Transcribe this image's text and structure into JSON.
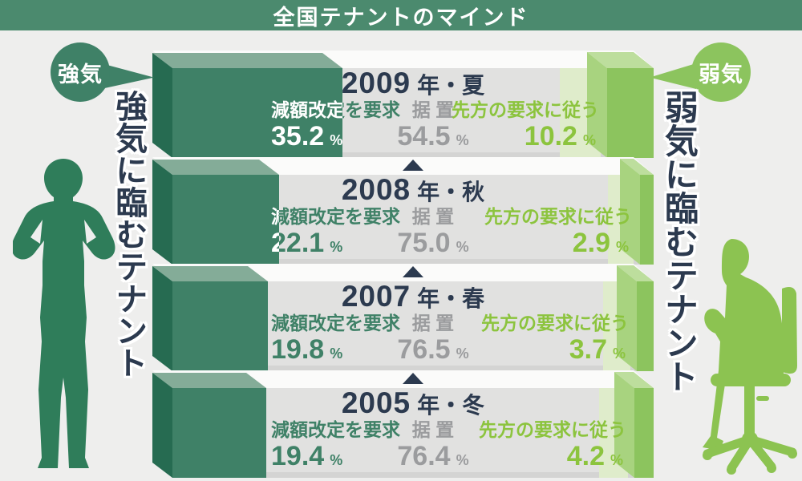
{
  "title": "全国テナントのマインド",
  "bullish_bubble": "強気",
  "bearish_bubble": "弱気",
  "left_caption": "強気に臨むテナント",
  "right_caption": "弱気に臨むテナント",
  "labels": {
    "demand": "減額改定を要求",
    "hold": "据 置",
    "follow": "先方の要求に従う",
    "percent": "%"
  },
  "bars": [
    {
      "year": "2009",
      "season": "年・夏",
      "demand": "35.2",
      "hold": "54.5",
      "follow": "10.2"
    },
    {
      "year": "2008",
      "season": "年・秋",
      "demand": "22.1",
      "hold": "75.0",
      "follow": "2.9"
    },
    {
      "year": "2007",
      "season": "年・春",
      "demand": "19.8",
      "hold": "76.5",
      "follow": "3.7"
    },
    {
      "year": "2005",
      "season": "年・冬",
      "demand": "19.4",
      "hold": "76.4",
      "follow": "4.2"
    }
  ],
  "chart_data": {
    "type": "bar",
    "orientation": "horizontal-stacked",
    "title": "全国テナントのマインド",
    "categories": [
      "2009年・夏",
      "2008年・秋",
      "2007年・春",
      "2005年・冬"
    ],
    "series": [
      {
        "name": "減額改定を要求",
        "values": [
          35.2,
          22.1,
          19.8,
          19.4
        ],
        "color": "#3f8167"
      },
      {
        "name": "据置",
        "values": [
          54.5,
          75.0,
          76.5,
          76.4
        ],
        "color": "#e1e1e0"
      },
      {
        "name": "先方の要求に従う",
        "values": [
          10.2,
          2.9,
          3.7,
          4.2
        ],
        "color": "#8cc45e"
      }
    ],
    "unit": "%",
    "annotations": [
      "強気",
      "弱気",
      "強気に臨むテナント",
      "弱気に臨むテナント"
    ],
    "legend_position": "none",
    "grid": false
  },
  "colors": {
    "background": "#eeeeed",
    "title_bg": "#4b8a6e",
    "bar_top": "#fbfbfa",
    "neutral_bar": "#e1e1e0",
    "bullish": "#3f8167",
    "bullish_top": "#84ac98",
    "bullish_side": "#266b51",
    "bullish_silhouette": "#2f7d5a",
    "bearish": "#8cc45e",
    "bearish_top": "#bdde9d",
    "bearish_side": "#a8d37f",
    "bearish_pale": "#dfeccb",
    "bearish_text": "#8cc43e",
    "bearish_silhouette": "#8cc351",
    "navy": "#2c3a4f",
    "gray_text": "#9b9c9e"
  }
}
